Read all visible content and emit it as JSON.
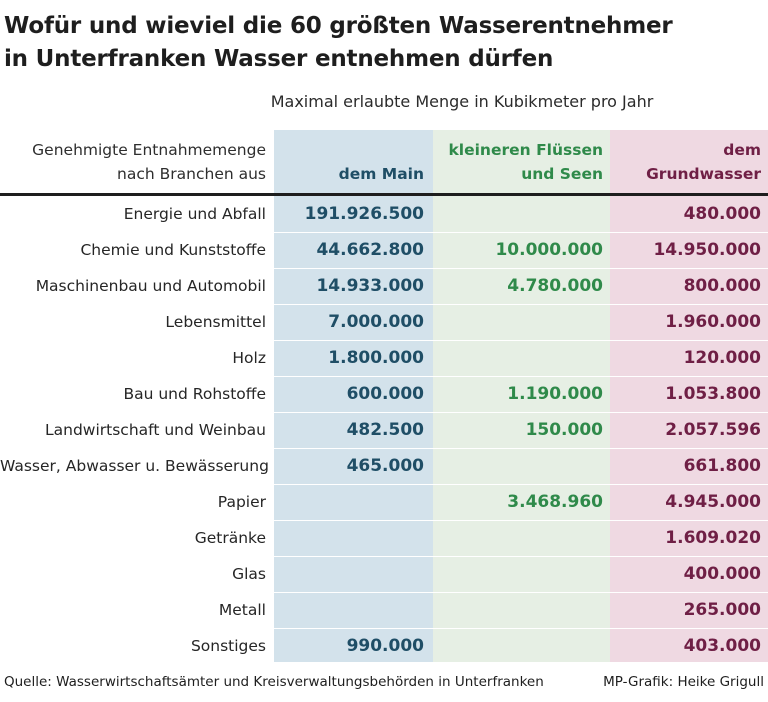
{
  "chart_data": {
    "type": "table",
    "title_lines": [
      "Wofür und wieviel die 60 größten Wasserentnehmer",
      "in Unterfranken Wasser entnehmen dürfen"
    ],
    "subtitle": "Maximal erlaubte Menge in Kubikmeter pro Jahr",
    "header": {
      "category": [
        "Genehmigte Entnahmemenge",
        "nach Branchen aus"
      ],
      "main": [
        "dem Main"
      ],
      "small": [
        "kleineren Flüssen",
        "und Seen"
      ],
      "grund": [
        "dem",
        "Grundwasser"
      ]
    },
    "columns": [
      "dem Main",
      "kleineren Flüssen und Seen",
      "dem Grundwasser"
    ],
    "rows": [
      {
        "category": "Energie und Abfall",
        "main": "191.926.500",
        "small": "",
        "grund": "480.000"
      },
      {
        "category": "Chemie und Kunststoffe",
        "main": "44.662.800",
        "small": "10.000.000",
        "grund": "14.950.000"
      },
      {
        "category": "Maschinenbau und Automobil",
        "main": "14.933.000",
        "small": "4.780.000",
        "grund": "800.000"
      },
      {
        "category": "Lebensmittel",
        "main": "7.000.000",
        "small": "",
        "grund": "1.960.000"
      },
      {
        "category": "Holz",
        "main": "1.800.000",
        "small": "",
        "grund": "120.000"
      },
      {
        "category": "Bau und Rohstoffe",
        "main": "600.000",
        "small": "1.190.000",
        "grund": "1.053.800"
      },
      {
        "category": "Landwirtschaft und Weinbau",
        "main": "482.500",
        "small": "150.000",
        "grund": "2.057.596"
      },
      {
        "category": "Wasser, Abwasser u. Bewässerung",
        "main": "465.000",
        "small": "",
        "grund": "661.800"
      },
      {
        "category": "Papier",
        "main": "",
        "small": "3.468.960",
        "grund": "4.945.000"
      },
      {
        "category": "Getränke",
        "main": "",
        "small": "",
        "grund": "1.609.020"
      },
      {
        "category": "Glas",
        "main": "",
        "small": "",
        "grund": "400.000"
      },
      {
        "category": "Metall",
        "main": "",
        "small": "",
        "grund": "265.000"
      },
      {
        "category": "Sonstiges",
        "main": "990.000",
        "small": "",
        "grund": "403.000"
      }
    ],
    "source": "Quelle: Wasserwirtschaftsämter und Kreisverwaltungsbehörden in Unterfranken",
    "credit": "MP-Grafik: Heike Grigull",
    "colors": {
      "main_text": "#1f4e66",
      "main_bg": "#d3e2eb",
      "small_text": "#2f8a4a",
      "small_bg": "#e6efe4",
      "grund_text": "#6f1f45",
      "grund_bg": "#efd9e2"
    }
  }
}
